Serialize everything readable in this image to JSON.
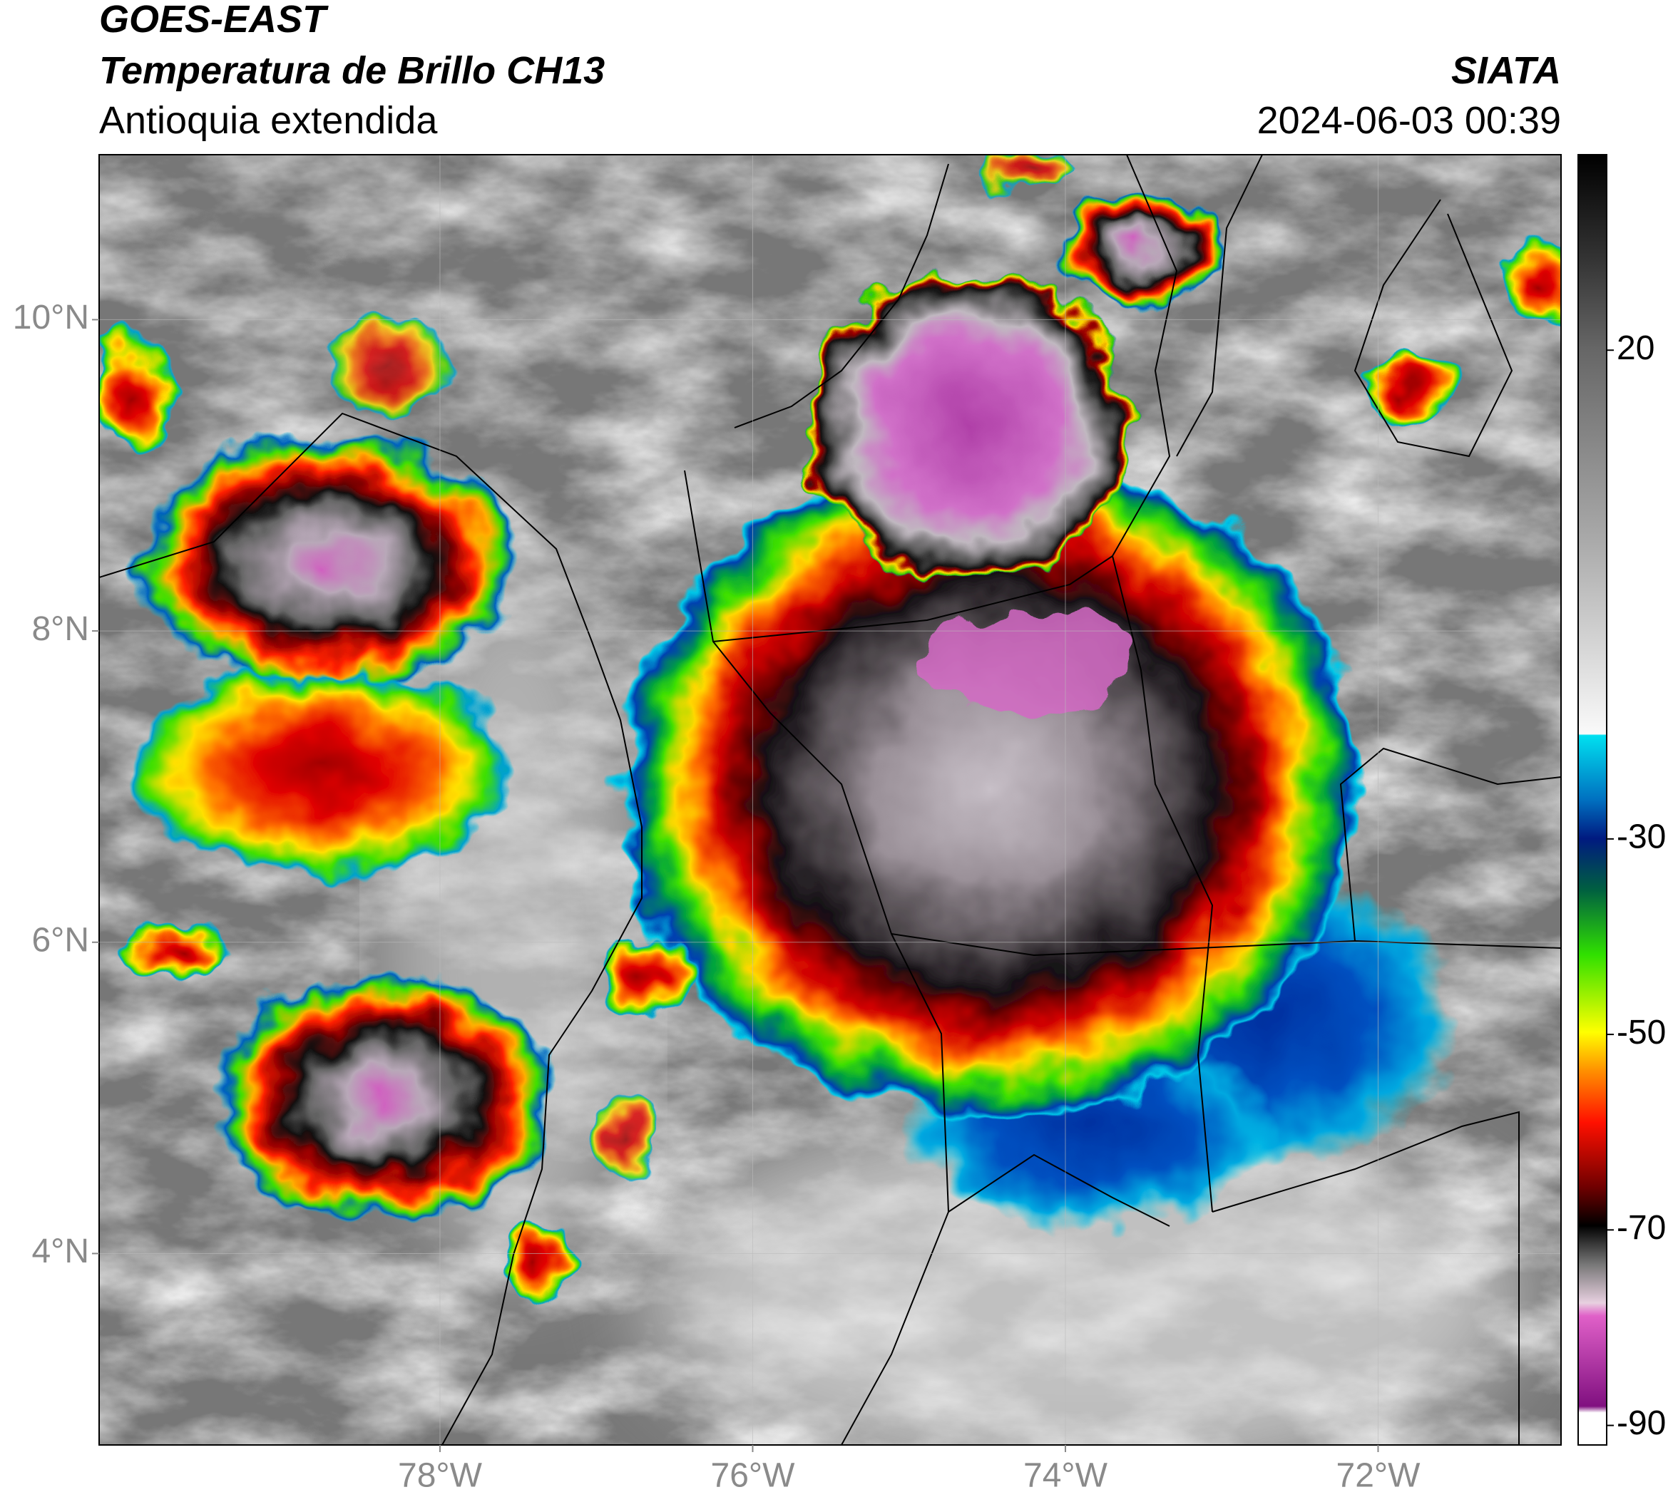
{
  "chart_data": {
    "type": "map",
    "title": "GOES-EAST",
    "subtitle": "Temperatura de Brillo CH13",
    "region": "Antioquia extendida",
    "source": "SIATA",
    "timestamp": "2024-06-03 00:39",
    "xlim": [
      -80.18,
      -70.83
    ],
    "ylim": [
      2.77,
      11.06
    ],
    "xticks": [
      {
        "value": -78,
        "label": "78°W"
      },
      {
        "value": -76,
        "label": "76°W"
      },
      {
        "value": -74,
        "label": "74°W"
      },
      {
        "value": -72,
        "label": "72°W"
      }
    ],
    "yticks": [
      {
        "value": 10,
        "label": "10°N"
      },
      {
        "value": 8,
        "label": "8°N"
      },
      {
        "value": 6,
        "label": "6°N"
      },
      {
        "value": 4,
        "label": "4°N"
      }
    ],
    "grid": true,
    "colorbar": {
      "clim": [
        -92,
        40
      ],
      "ticks": [
        20,
        -30,
        -50,
        -70,
        -90
      ]
    }
  }
}
